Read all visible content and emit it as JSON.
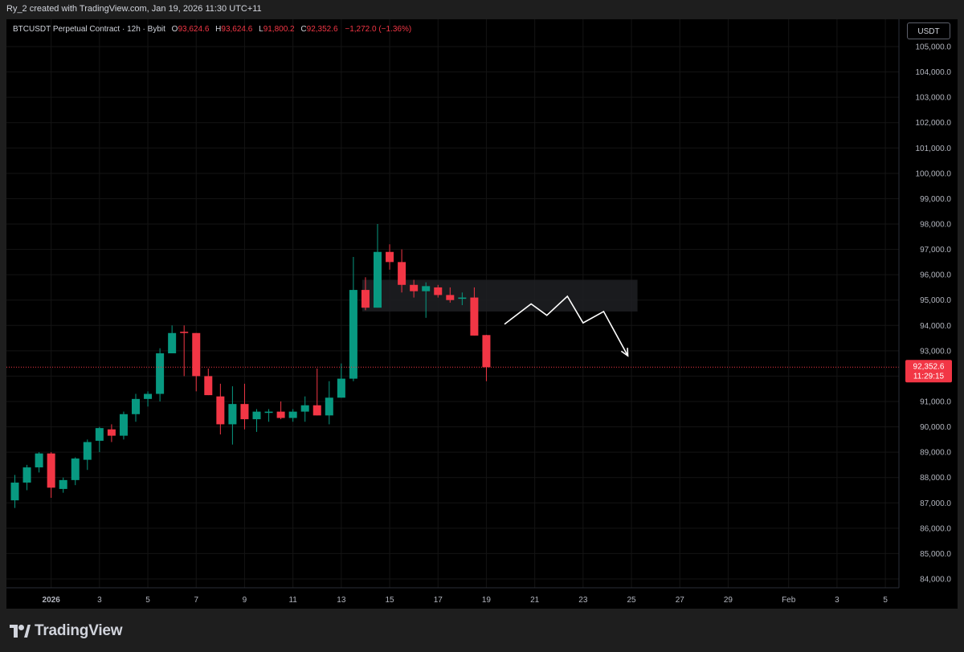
{
  "header": {
    "credit": "Ry_2 created with TradingView.com, Jan 19, 2026 11:30 UTC+11"
  },
  "legend": {
    "symbol": "BTCUSDT Perpetual Contract · 12h · Bybit",
    "open_label": "O",
    "open": "93,624.6",
    "high_label": "H",
    "high": "93,624.6",
    "low_label": "L",
    "low": "91,800.2",
    "close_label": "C",
    "close": "92,352.6",
    "change": "−1,272.0 (−1.36%)"
  },
  "currency_button": "USDT",
  "current_price": {
    "value": "92,352.6",
    "countdown": "11:29:15"
  },
  "brand": {
    "name": "TradingView"
  },
  "colors": {
    "up": "#089981",
    "down": "#f23645",
    "background": "#000000",
    "grid": "#141414",
    "zone": "#1e2023",
    "arrow": "#ffffff"
  },
  "chart_data": {
    "type": "candlestick",
    "interval": "12h",
    "x_labels": [
      {
        "label": "2026",
        "index": 3
      },
      {
        "label": "3",
        "index": 7
      },
      {
        "label": "5",
        "index": 11
      },
      {
        "label": "7",
        "index": 15
      },
      {
        "label": "9",
        "index": 19
      },
      {
        "label": "11",
        "index": 23
      },
      {
        "label": "13",
        "index": 27
      },
      {
        "label": "15",
        "index": 31
      },
      {
        "label": "17",
        "index": 35
      },
      {
        "label": "19",
        "index": 39
      },
      {
        "label": "21",
        "index": 43
      },
      {
        "label": "23",
        "index": 47
      },
      {
        "label": "25",
        "index": 51
      },
      {
        "label": "27",
        "index": 55
      },
      {
        "label": "29",
        "index": 59
      },
      {
        "label": "Feb",
        "index": 64
      },
      {
        "label": "3",
        "index": 68
      },
      {
        "label": "5",
        "index": 72
      }
    ],
    "y_ticks": [
      "84,000.0",
      "85,000.0",
      "86,000.0",
      "87,000.0",
      "88,000.0",
      "89,000.0",
      "90,000.0",
      "91,000.0",
      "92,000.0",
      "93,000.0",
      "94,000.0",
      "95,000.0",
      "96,000.0",
      "97,000.0",
      "98,000.0",
      "99,000.0",
      "100,000.0",
      "101,000.0",
      "102,000.0",
      "103,000.0",
      "104,000.0",
      "105,000.0"
    ],
    "ylim": [
      83300,
      105400
    ],
    "candles": [
      [
        87100,
        88100,
        86800,
        87800
      ],
      [
        87800,
        88500,
        87500,
        88400
      ],
      [
        88400,
        89000,
        88200,
        88950
      ],
      [
        88950,
        89000,
        87200,
        87600
      ],
      [
        87550,
        88000,
        87400,
        87900
      ],
      [
        87900,
        88800,
        87700,
        88750
      ],
      [
        88700,
        89500,
        88300,
        89400
      ],
      [
        89450,
        90000,
        89000,
        89950
      ],
      [
        89900,
        90100,
        89400,
        89650
      ],
      [
        89650,
        90600,
        89500,
        90500
      ],
      [
        90500,
        91300,
        90200,
        91100
      ],
      [
        91100,
        91400,
        90800,
        91300
      ],
      [
        91300,
        93100,
        91000,
        92900
      ],
      [
        92900,
        94000,
        92900,
        93700
      ],
      [
        93750,
        94000,
        92000,
        93700
      ],
      [
        93700,
        93600,
        91400,
        92000
      ],
      [
        92000,
        92300,
        91400,
        91250
      ],
      [
        91200,
        91700,
        89700,
        90100
      ],
      [
        90100,
        91600,
        89300,
        90900
      ],
      [
        90900,
        91700,
        89900,
        90300
      ],
      [
        90300,
        90700,
        89800,
        90600
      ],
      [
        90550,
        90700,
        90200,
        90600
      ],
      [
        90600,
        91000,
        90300,
        90350
      ],
      [
        90350,
        90700,
        90200,
        90600
      ],
      [
        90600,
        91200,
        90200,
        90850
      ],
      [
        90850,
        92300,
        90500,
        90450
      ],
      [
        90450,
        91800,
        90100,
        91150
      ],
      [
        91150,
        92500,
        91300,
        91900
      ],
      [
        91900,
        96700,
        91800,
        95400
      ],
      [
        95400,
        95900,
        94600,
        94700
      ],
      [
        94700,
        98000,
        94800,
        96900
      ],
      [
        96900,
        97200,
        96200,
        96500
      ],
      [
        96500,
        97000,
        95300,
        95600
      ],
      [
        95600,
        95800,
        95100,
        95350
      ],
      [
        95350,
        95700,
        94300,
        95550
      ],
      [
        95500,
        95600,
        95100,
        95200
      ],
      [
        95200,
        95500,
        94900,
        95000
      ],
      [
        95050,
        95300,
        94800,
        95100
      ],
      [
        95100,
        95500,
        93600,
        93600
      ],
      [
        93620,
        93630,
        91800,
        92350
      ]
    ],
    "zone": {
      "from_index": 29,
      "to_index": 51.5,
      "top": 95800,
      "bottom": 94550
    },
    "projection_path": [
      [
        40.5,
        94050
      ],
      [
        42.7,
        94850
      ],
      [
        44,
        94400
      ],
      [
        45.7,
        95150
      ],
      [
        47,
        94100
      ],
      [
        48.7,
        94550
      ],
      [
        50.7,
        92800
      ]
    ],
    "current_price_line": 92352.6
  }
}
